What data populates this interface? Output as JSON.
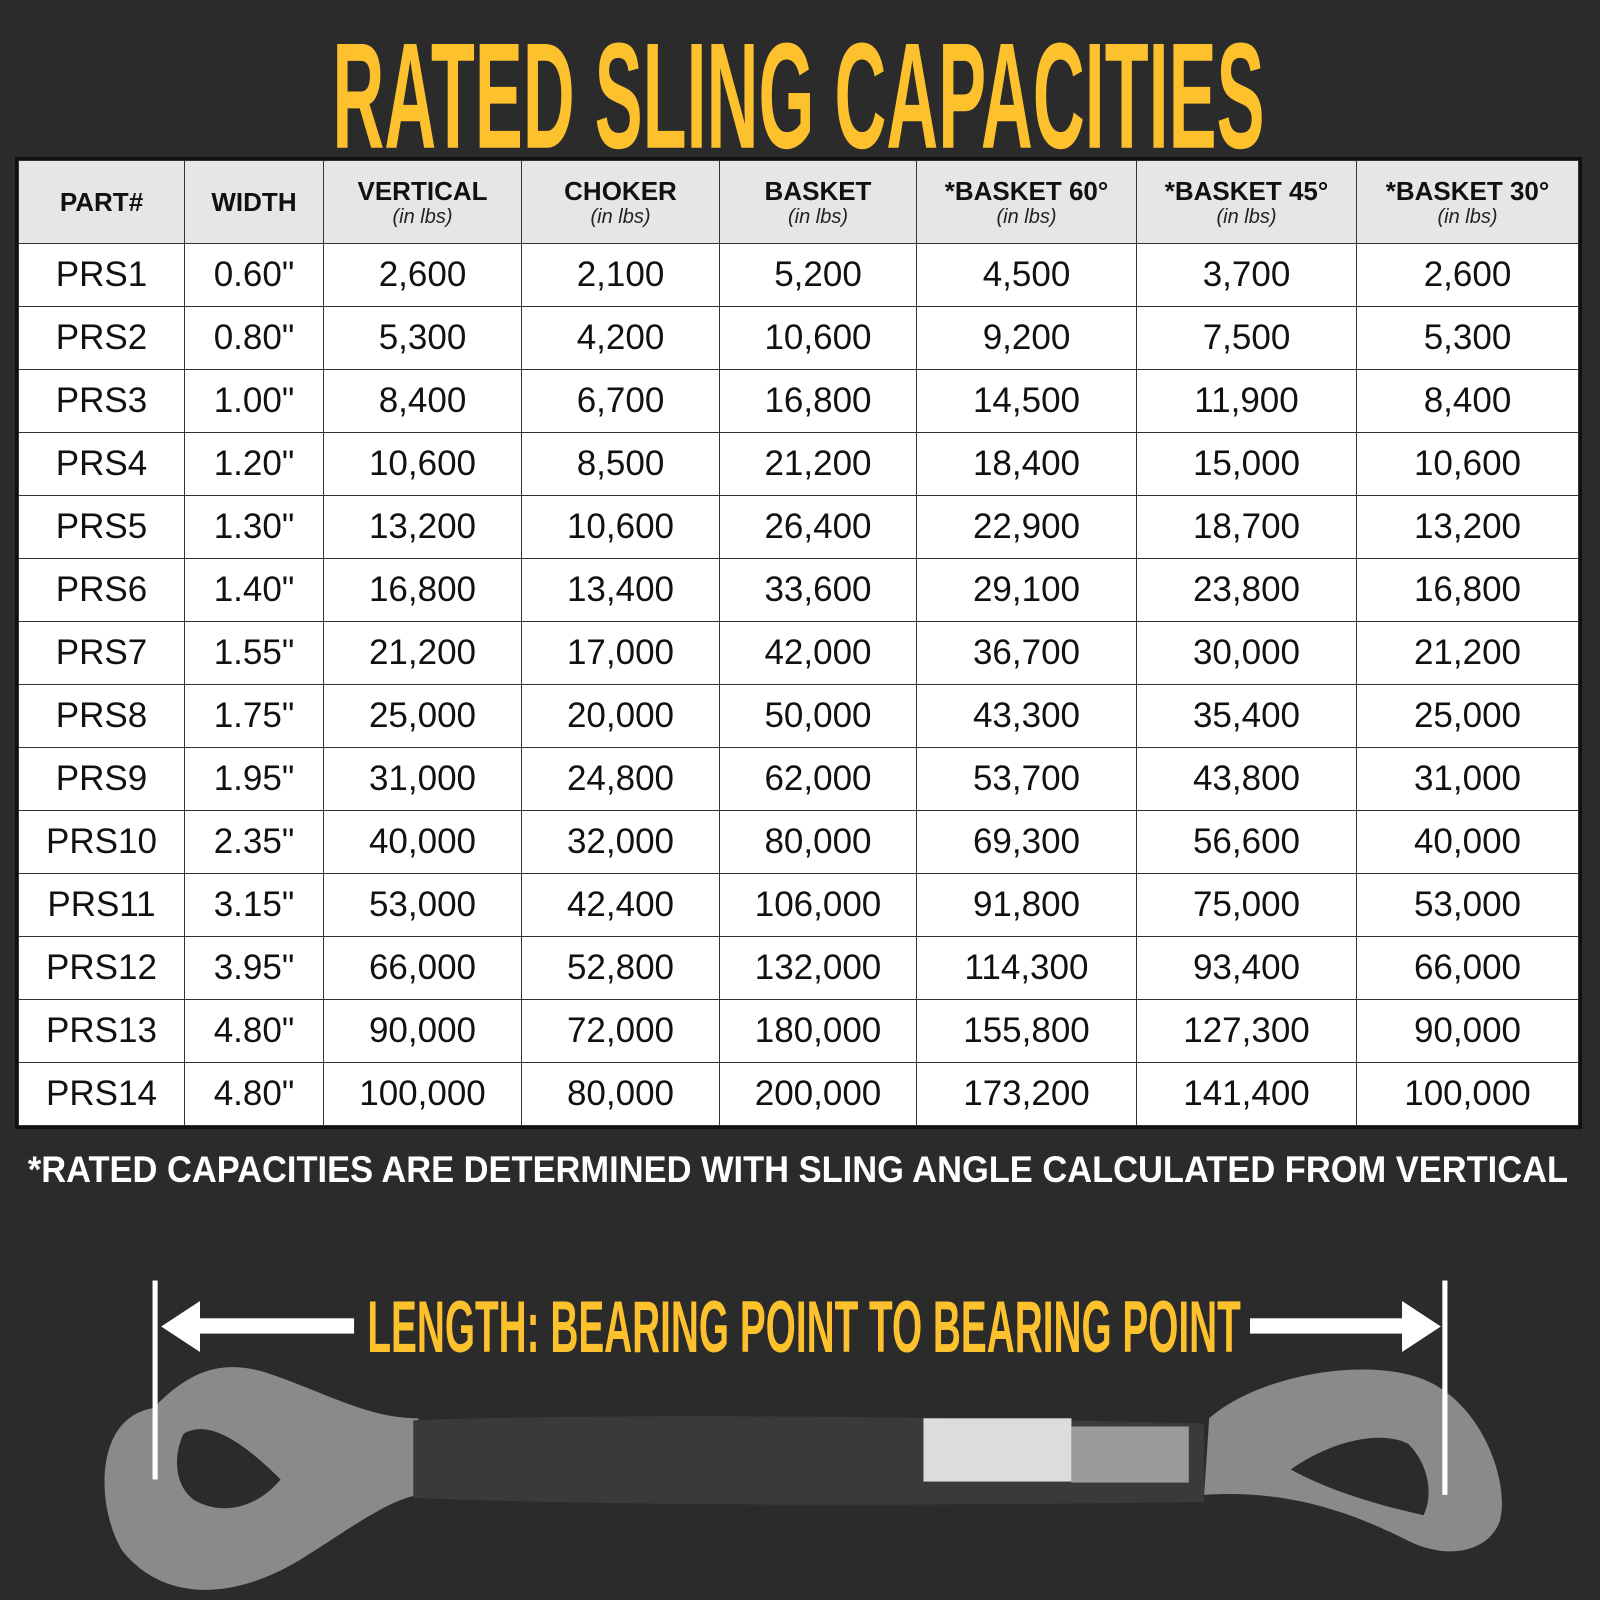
{
  "title": "RATED SLING CAPACITIES",
  "colors": {
    "accent": "#fcc12d",
    "background": "#2b2b2b",
    "header_bg": "#e6e6e6"
  },
  "table": {
    "columns": [
      {
        "label": "PART#",
        "sub": ""
      },
      {
        "label": "WIDTH",
        "sub": ""
      },
      {
        "label": "VERTICAL",
        "sub": "(in lbs)"
      },
      {
        "label": "CHOKER",
        "sub": "(in lbs)"
      },
      {
        "label": "BASKET",
        "sub": "(in lbs)"
      },
      {
        "label": "*BASKET 60°",
        "sub": "(in lbs)"
      },
      {
        "label": "*BASKET 45°",
        "sub": "(in lbs)"
      },
      {
        "label": "*BASKET 30°",
        "sub": "(in lbs)"
      }
    ],
    "rows": [
      [
        "PRS1",
        "0.60\"",
        "2,600",
        "2,100",
        "5,200",
        "4,500",
        "3,700",
        "2,600"
      ],
      [
        "PRS2",
        "0.80\"",
        "5,300",
        "4,200",
        "10,600",
        "9,200",
        "7,500",
        "5,300"
      ],
      [
        "PRS3",
        "1.00\"",
        "8,400",
        "6,700",
        "16,800",
        "14,500",
        "11,900",
        "8,400"
      ],
      [
        "PRS4",
        "1.20\"",
        "10,600",
        "8,500",
        "21,200",
        "18,400",
        "15,000",
        "10,600"
      ],
      [
        "PRS5",
        "1.30\"",
        "13,200",
        "10,600",
        "26,400",
        "22,900",
        "18,700",
        "13,200"
      ],
      [
        "PRS6",
        "1.40\"",
        "16,800",
        "13,400",
        "33,600",
        "29,100",
        "23,800",
        "16,800"
      ],
      [
        "PRS7",
        "1.55\"",
        "21,200",
        "17,000",
        "42,000",
        "36,700",
        "30,000",
        "21,200"
      ],
      [
        "PRS8",
        "1.75\"",
        "25,000",
        "20,000",
        "50,000",
        "43,300",
        "35,400",
        "25,000"
      ],
      [
        "PRS9",
        "1.95\"",
        "31,000",
        "24,800",
        "62,000",
        "53,700",
        "43,800",
        "31,000"
      ],
      [
        "PRS10",
        "2.35\"",
        "40,000",
        "32,000",
        "80,000",
        "69,300",
        "56,600",
        "40,000"
      ],
      [
        "PRS11",
        "3.15\"",
        "53,000",
        "42,400",
        "106,000",
        "91,800",
        "75,000",
        "53,000"
      ],
      [
        "PRS12",
        "3.95\"",
        "66,000",
        "52,800",
        "132,000",
        "114,300",
        "93,400",
        "66,000"
      ],
      [
        "PRS13",
        "4.80\"",
        "90,000",
        "72,000",
        "180,000",
        "155,800",
        "127,300",
        "90,000"
      ],
      [
        "PRS14",
        "4.80\"",
        "100,000",
        "80,000",
        "200,000",
        "173,200",
        "141,400",
        "100,000"
      ]
    ]
  },
  "footnote": "*RATED CAPACITIES ARE DETERMINED WITH SLING ANGLE CALCULATED FROM VERTICAL",
  "length_label": "LENGTH: BEARING POINT TO BEARING POINT"
}
